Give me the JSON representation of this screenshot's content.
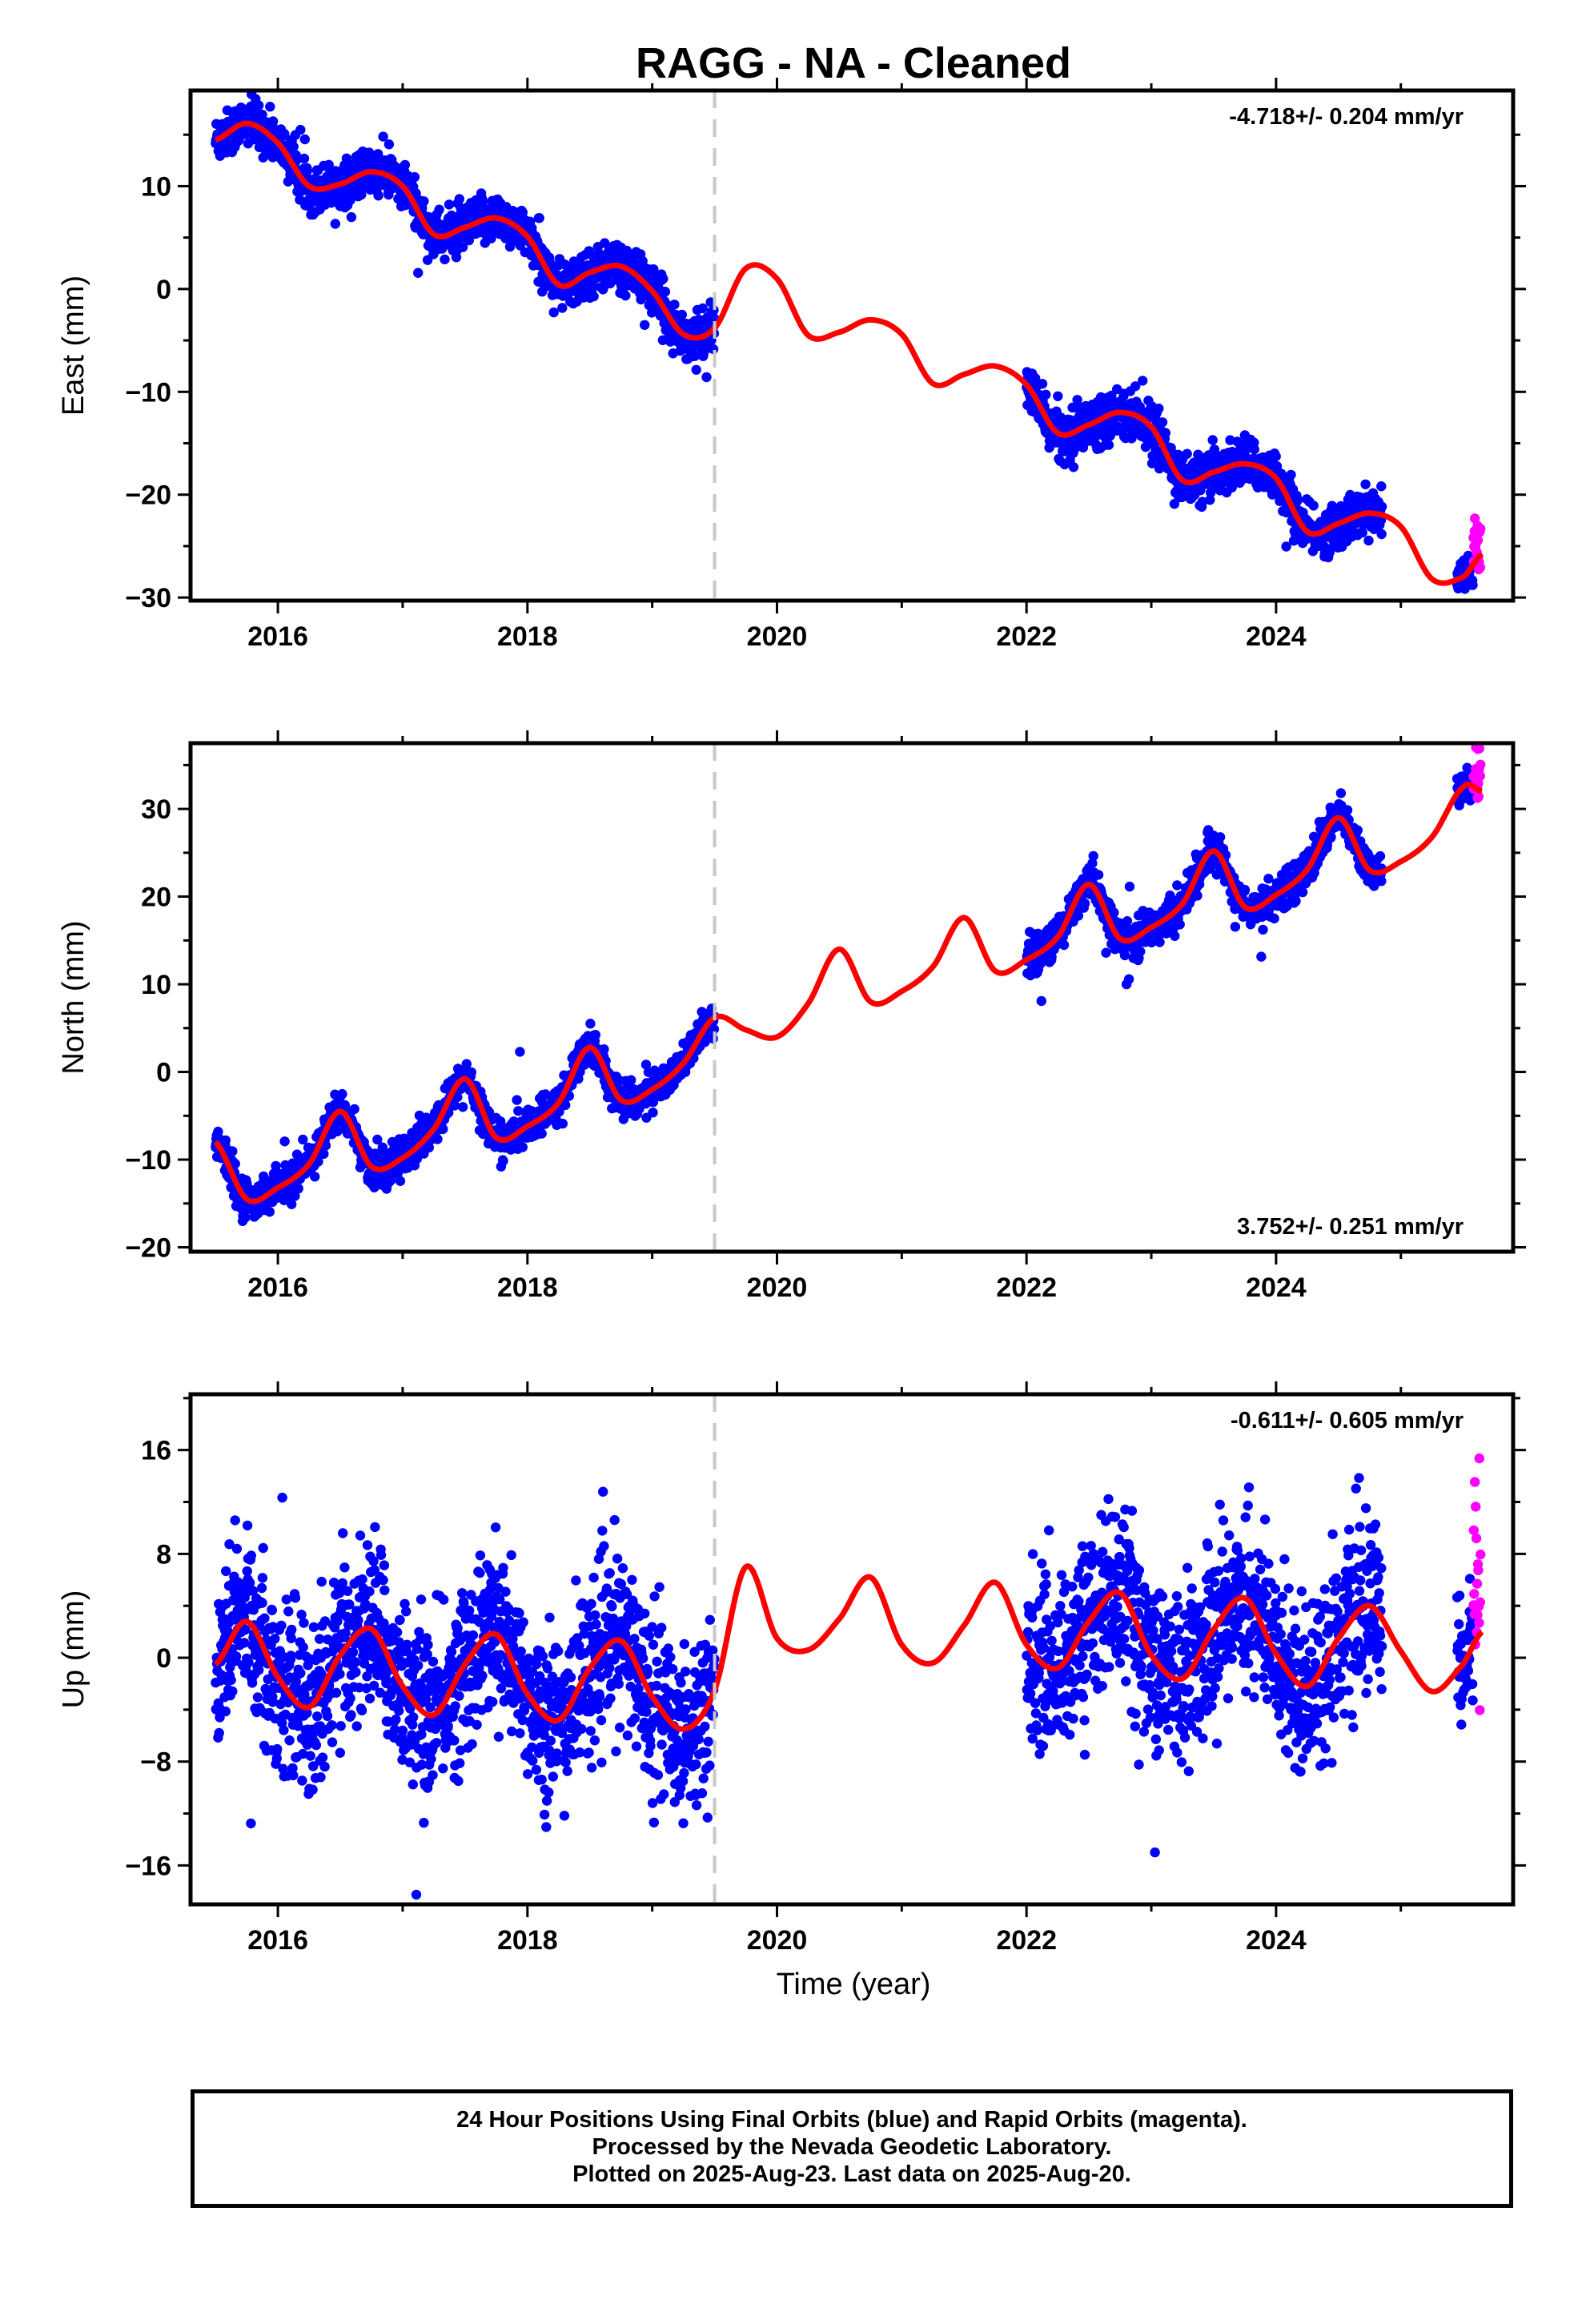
{
  "title": "RAGG  - NA - Cleaned",
  "xlabel": "Time (year)",
  "footer": {
    "line1": "24 Hour Positions Using Final Orbits (blue) and Rapid Orbits (magenta).",
    "line2": "Processed by the Nevada Geodetic Laboratory.",
    "line3": "Plotted on 2025-Aug-23. Last data on 2025-Aug-20."
  },
  "colors": {
    "final": "#0000ff",
    "rapid": "#ff00ff",
    "model": "#ff0000",
    "step": "#c8c8c8"
  },
  "chart_data": [
    {
      "type": "scatter",
      "name": "east",
      "ylabel": "East (mm)",
      "rate": "-4.718+/- 0.204 mm/yr",
      "rate_position": "top-right",
      "xlim": [
        2015.3,
        2025.9
      ],
      "ylim": [
        -30.3,
        19.3
      ],
      "yticks": [
        -30,
        -20,
        -10,
        0,
        10
      ],
      "yticklabels": [
        "−30",
        "−20",
        "−10",
        "0",
        "10"
      ],
      "xticks": [
        2016,
        2018,
        2020,
        2022,
        2024
      ],
      "xticklabels": [
        "2016",
        "2018",
        "2020",
        "2022",
        "2024"
      ],
      "step": 2019.5,
      "model": {
        "x": [
          2015.5,
          2015.75,
          2016.0,
          2016.25,
          2016.5,
          2016.75,
          2017.0,
          2017.25,
          2017.5,
          2017.75,
          2018.0,
          2018.25,
          2018.5,
          2018.75,
          2019.0,
          2019.25,
          2019.5,
          2019.75,
          2020.0,
          2020.25,
          2020.5,
          2020.75,
          2021.0,
          2021.25,
          2021.5,
          2021.75,
          2022.0,
          2022.25,
          2022.5,
          2022.75,
          2023.0,
          2023.25,
          2023.5,
          2023.75,
          2024.0,
          2024.25,
          2024.5,
          2024.75,
          2025.0,
          2025.25,
          2025.5,
          2025.65
        ],
        "y": [
          14.5,
          16.1,
          14.2,
          10.0,
          10.2,
          11.4,
          10.0,
          5.3,
          6.0,
          6.9,
          5.1,
          0.4,
          1.6,
          2.2,
          -0.2,
          -4.4,
          -3.8,
          2.0,
          1.0,
          -4.5,
          -4.2,
          -3.0,
          -4.4,
          -9.2,
          -8.3,
          -7.5,
          -9.3,
          -14.0,
          -13.2,
          -12.0,
          -13.4,
          -18.6,
          -17.8,
          -17.0,
          -18.4,
          -23.6,
          -22.8,
          -21.8,
          -23.1,
          -28.2,
          -28.0,
          -25.8
        ]
      },
      "final_segments": [
        {
          "x0": 2015.5,
          "x1": 2019.5,
          "sigma": 1.1
        },
        {
          "x0": 2022.0,
          "x1": 2024.85,
          "sigma": 1.1
        },
        {
          "x0": 2025.45,
          "x1": 2025.58,
          "sigma": 1.0
        }
      ],
      "rapid": {
        "x0": 2025.58,
        "x1": 2025.64,
        "offset": 2.0,
        "sigma": 2.2
      }
    },
    {
      "type": "scatter",
      "name": "north",
      "ylabel": "North (mm)",
      "rate": "3.752+/- 0.251 mm/yr",
      "rate_position": "bottom-right",
      "xlim": [
        2015.3,
        2025.9
      ],
      "ylim": [
        -20.5,
        37.5
      ],
      "yticks": [
        -20,
        -10,
        0,
        10,
        20,
        30
      ],
      "yticklabels": [
        "−20",
        "−10",
        "0",
        "10",
        "20",
        "30"
      ],
      "xticks": [
        2016,
        2018,
        2020,
        2022,
        2024
      ],
      "xticklabels": [
        "2016",
        "2018",
        "2020",
        "2022",
        "2024"
      ],
      "step": 2019.5,
      "model": {
        "x": [
          2015.5,
          2015.75,
          2016.0,
          2016.25,
          2016.5,
          2016.75,
          2017.0,
          2017.25,
          2017.5,
          2017.75,
          2018.0,
          2018.25,
          2018.5,
          2018.75,
          2019.0,
          2019.25,
          2019.5,
          2019.75,
          2020.0,
          2020.25,
          2020.5,
          2020.75,
          2021.0,
          2021.25,
          2021.5,
          2021.75,
          2022.0,
          2022.25,
          2022.5,
          2022.75,
          2023.0,
          2023.25,
          2023.5,
          2023.75,
          2024.0,
          2024.25,
          2024.5,
          2024.75,
          2025.0,
          2025.25,
          2025.5,
          2025.65
        ],
        "y": [
          -8.0,
          -14.5,
          -13.2,
          -10.5,
          -4.5,
          -10.8,
          -9.8,
          -6.5,
          -0.8,
          -7.5,
          -6.2,
          -3.5,
          2.8,
          -3.2,
          -2.0,
          1.0,
          6.2,
          4.8,
          4.0,
          7.8,
          14.0,
          8.0,
          9.2,
          12.0,
          17.6,
          11.5,
          12.8,
          15.4,
          21.4,
          15.2,
          16.5,
          19.2,
          25.2,
          18.8,
          20.2,
          23.1,
          29.0,
          23.0,
          24.0,
          26.8,
          32.5,
          32.0
        ]
      },
      "final_segments": [
        {
          "x0": 2015.5,
          "x1": 2019.5,
          "sigma": 1.0
        },
        {
          "x0": 2022.0,
          "x1": 2024.85,
          "sigma": 1.0
        },
        {
          "x0": 2025.45,
          "x1": 2025.58,
          "sigma": 0.9
        }
      ],
      "rapid": {
        "x0": 2025.58,
        "x1": 2025.64,
        "offset": 1.5,
        "sigma": 1.8
      }
    },
    {
      "type": "scatter",
      "name": "up",
      "ylabel": "Up (mm)",
      "rate": "-0.611+/- 0.605 mm/yr",
      "rate_position": "top-right",
      "xlim": [
        2015.3,
        2025.9
      ],
      "ylim": [
        -19.0,
        20.3
      ],
      "yticks": [
        -16,
        -8,
        0,
        8,
        16
      ],
      "yticklabels": [
        "−16",
        "−8",
        "0",
        "8",
        "16"
      ],
      "xticks": [
        2016,
        2018,
        2020,
        2022,
        2024
      ],
      "xticklabels": [
        "2016",
        "2018",
        "2020",
        "2022",
        "2024"
      ],
      "step": 2019.5,
      "model": {
        "x": [
          2015.5,
          2015.75,
          2016.0,
          2016.25,
          2016.5,
          2016.75,
          2017.0,
          2017.25,
          2017.5,
          2017.75,
          2018.0,
          2018.25,
          2018.5,
          2018.75,
          2019.0,
          2019.25,
          2019.5,
          2019.75,
          2020.0,
          2020.25,
          2020.5,
          2020.75,
          2021.0,
          2021.25,
          2021.5,
          2021.75,
          2022.0,
          2022.25,
          2022.5,
          2022.75,
          2023.0,
          2023.25,
          2023.5,
          2023.75,
          2024.0,
          2024.25,
          2024.5,
          2024.75,
          2025.0,
          2025.25,
          2025.5,
          2025.65
        ],
        "y": [
          -0.5,
          2.8,
          -1.5,
          -3.8,
          0.2,
          2.2,
          -2.2,
          -4.4,
          -0.5,
          1.8,
          -2.8,
          -4.8,
          -0.8,
          1.3,
          -3.0,
          -5.5,
          -2.5,
          7.0,
          1.5,
          0.6,
          3.0,
          6.2,
          1.0,
          -0.4,
          2.5,
          5.8,
          1.0,
          -0.8,
          2.8,
          5.0,
          0.2,
          -1.6,
          2.2,
          4.6,
          0.3,
          -2.2,
          1.5,
          4.0,
          0.5,
          -2.6,
          -0.5,
          2.0
        ]
      },
      "final_segments": [
        {
          "x0": 2015.5,
          "x1": 2019.5,
          "sigma": 3.2
        },
        {
          "x0": 2022.0,
          "x1": 2024.85,
          "sigma": 3.2
        },
        {
          "x0": 2025.45,
          "x1": 2025.58,
          "sigma": 2.5
        }
      ],
      "rapid": {
        "x0": 2025.58,
        "x1": 2025.64,
        "offset": 3.0,
        "sigma": 4.5
      }
    }
  ]
}
